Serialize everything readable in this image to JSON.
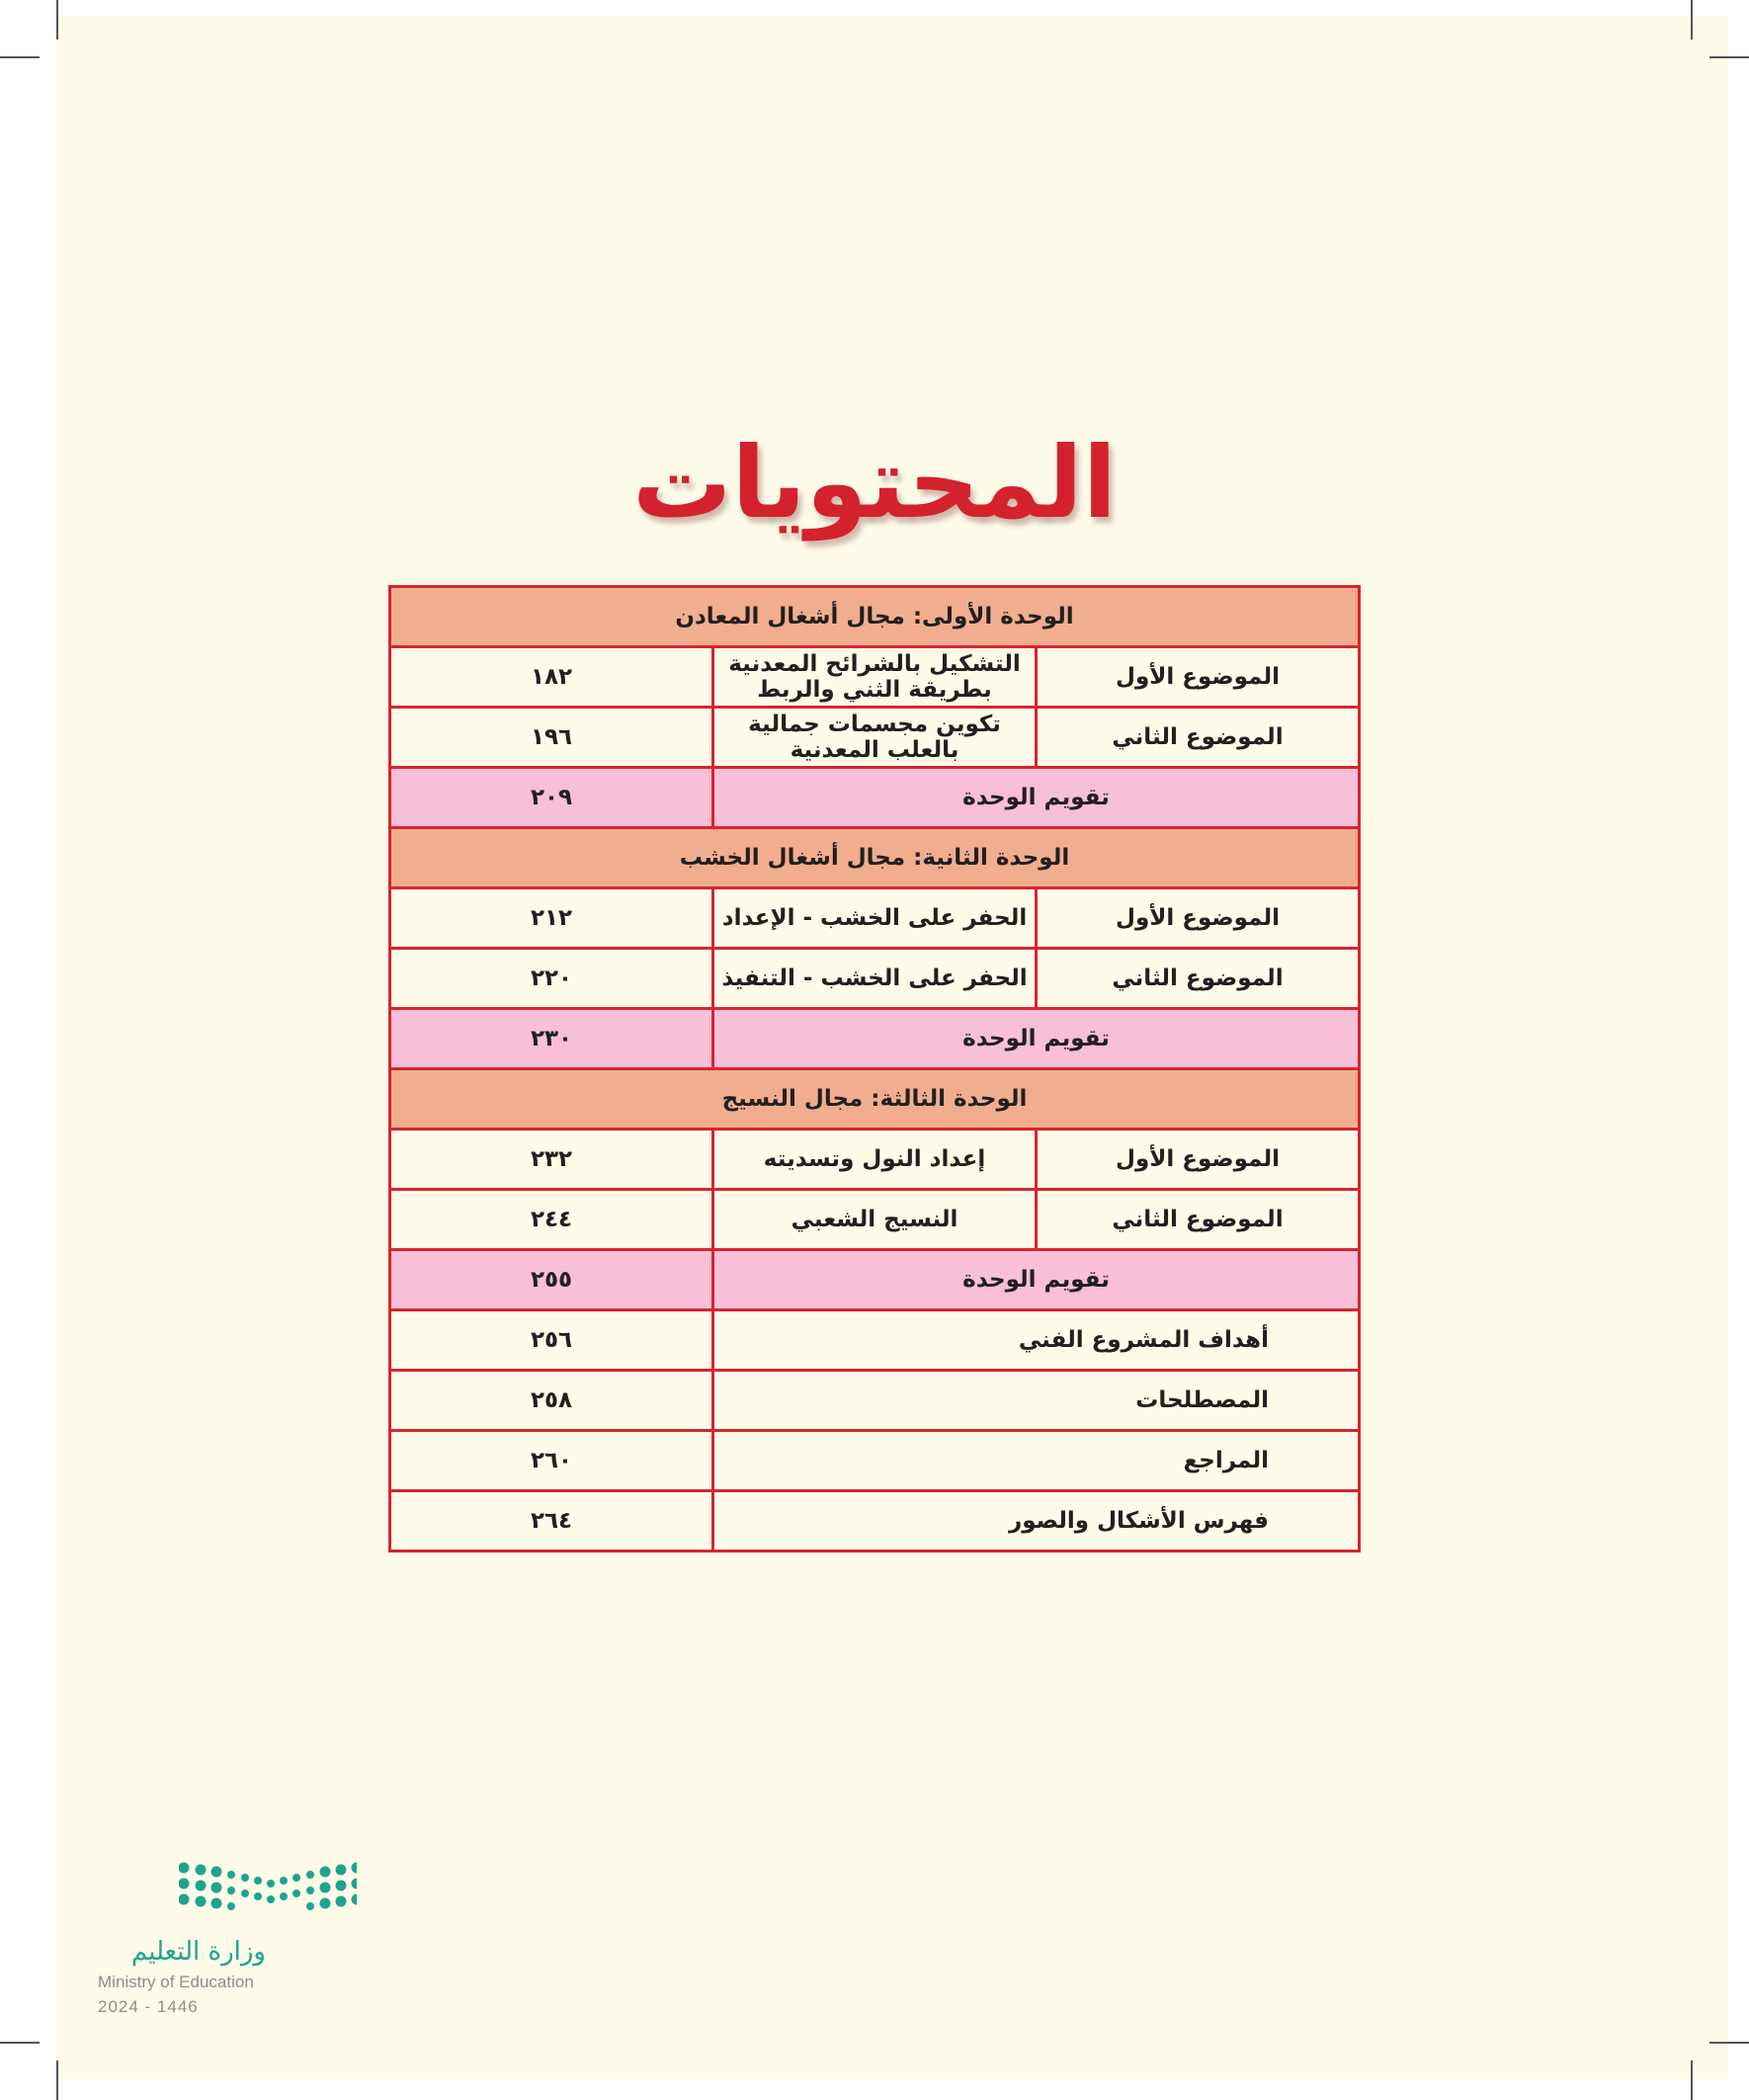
{
  "title": "المحتويات",
  "colors": {
    "border": "#d7252f",
    "unit_row": "#f0ae8e",
    "evaluation_row": "#f7bfd8",
    "title": "#d3222d",
    "page": "#fefce8",
    "logo": "#1ea48d"
  },
  "rows": [
    {
      "type": "unit",
      "text": "الوحدة الأولى:  مجال أشغال المعادن"
    },
    {
      "type": "topic",
      "label": "الموضوع الأول",
      "text": "التشكيل بالشرائح المعدنية بطريقة الثني والربط",
      "page": "١٨٢"
    },
    {
      "type": "topic",
      "label": "الموضوع الثاني",
      "text": "تكوين مجسمات جمالية بالعلب المعدنية",
      "page": "١٩٦"
    },
    {
      "type": "eval",
      "text": "تقويم الوحدة",
      "page": "٢٠٩"
    },
    {
      "type": "unit",
      "text": "الوحدة الثانية:  مجال أشغال الخشب"
    },
    {
      "type": "topic",
      "label": "الموضوع الأول",
      "text": "الحفر على الخشب - الإعداد",
      "page": "٢١٢"
    },
    {
      "type": "topic",
      "label": "الموضوع الثاني",
      "text": "الحفر على الخشب - التنفيذ",
      "page": "٢٢٠"
    },
    {
      "type": "eval",
      "text": "تقويم الوحدة",
      "page": "٢٣٠"
    },
    {
      "type": "unit",
      "text": "الوحدة الثالثة:  مجال النسيج"
    },
    {
      "type": "topic",
      "label": "الموضوع الأول",
      "text": "إعداد النول وتسديته",
      "page": "٢٣٢"
    },
    {
      "type": "topic",
      "label": "الموضوع الثاني",
      "text": "النسيج الشعبي",
      "page": "٢٤٤"
    },
    {
      "type": "eval",
      "text": "تقويم الوحدة",
      "page": "٢٥٥"
    },
    {
      "type": "other",
      "text": "أهداف المشروع الفني",
      "page": "٢٥٦"
    },
    {
      "type": "other",
      "text": "المصطلحات",
      "page": "٢٥٨"
    },
    {
      "type": "other",
      "text": "المراجع",
      "page": "٢٦٠"
    },
    {
      "type": "other",
      "text": "فهرس الأشكال والصور",
      "page": "٢٦٤"
    }
  ],
  "logo": {
    "arabic": "وزارة التعليم",
    "english": "Ministry of Education",
    "year": "2024 - 1446"
  }
}
